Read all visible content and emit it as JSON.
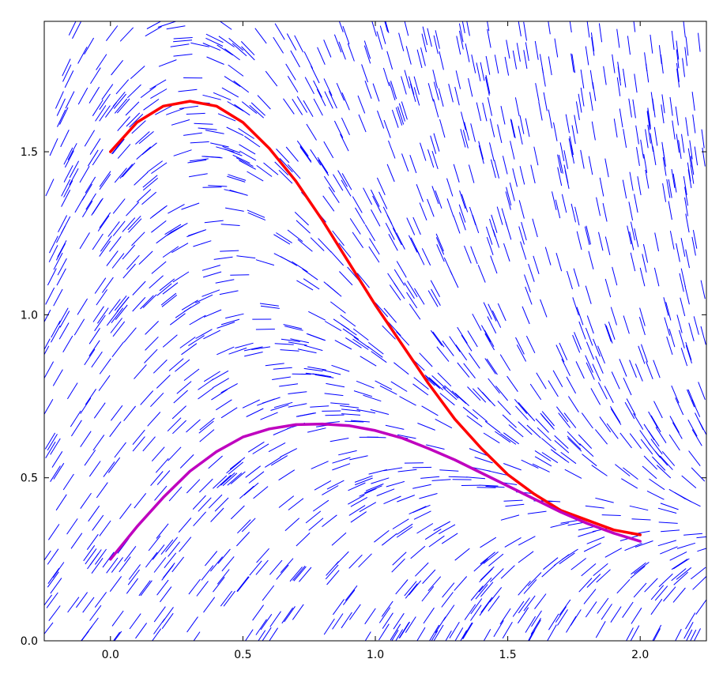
{
  "chart_data": {
    "type": "line",
    "title": "",
    "xlabel": "",
    "ylabel": "",
    "xlim": [
      -0.25,
      2.25
    ],
    "ylim": [
      0.0,
      1.9
    ],
    "grid": false,
    "x_ticks": [
      "0.0",
      "0.5",
      "1.0",
      "1.5",
      "2.0"
    ],
    "y_ticks": [
      "0.0",
      "0.5",
      "1.0",
      "1.5"
    ],
    "field_color": "#0000ff",
    "series": [
      {
        "color": "#ff0000",
        "x": [
          0.0,
          0.1,
          0.2,
          0.3,
          0.4,
          0.5,
          0.6,
          0.7,
          0.8,
          0.9,
          1.0,
          1.1,
          1.2,
          1.3,
          1.4,
          1.5,
          1.6,
          1.7,
          1.8,
          1.9,
          2.0
        ],
        "y": [
          1.5,
          1.59,
          1.64,
          1.655,
          1.64,
          1.59,
          1.51,
          1.41,
          1.29,
          1.16,
          1.03,
          0.91,
          0.79,
          0.68,
          0.59,
          0.51,
          0.45,
          0.4,
          0.37,
          0.34,
          0.325
        ]
      },
      {
        "color": "#bf00bf",
        "x": [
          0.0,
          0.1,
          0.2,
          0.3,
          0.4,
          0.5,
          0.6,
          0.7,
          0.8,
          0.9,
          1.0,
          1.1,
          1.2,
          1.3,
          1.4,
          1.5,
          1.6,
          1.7,
          1.8,
          1.9,
          2.0
        ],
        "y": [
          0.25,
          0.35,
          0.44,
          0.52,
          0.58,
          0.625,
          0.65,
          0.663,
          0.665,
          0.66,
          0.645,
          0.622,
          0.59,
          0.555,
          0.515,
          0.475,
          0.435,
          0.395,
          0.36,
          0.33,
          0.305
        ]
      }
    ]
  }
}
